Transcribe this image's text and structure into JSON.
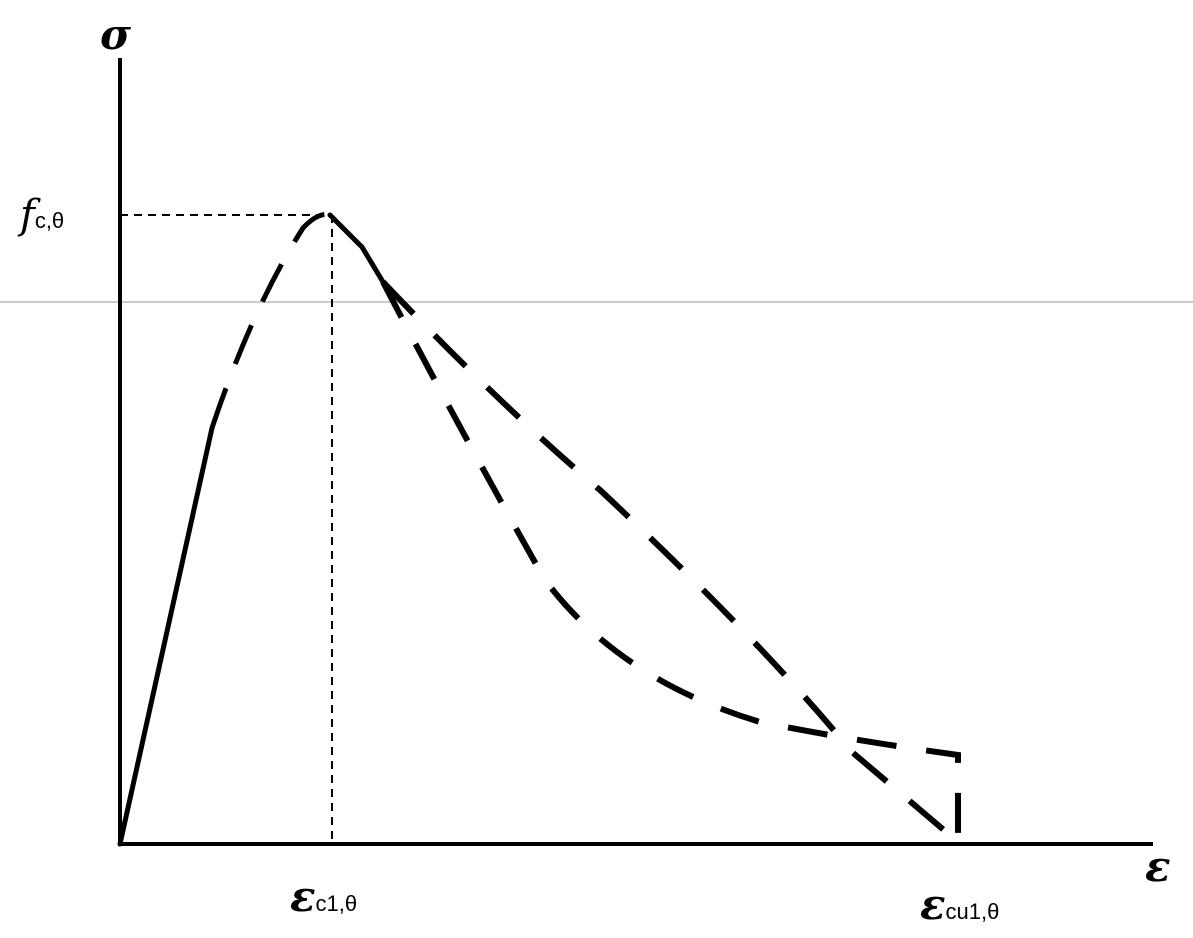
{
  "labels": {
    "sigma": "σ",
    "epsilon": "ε",
    "fc_main": "f",
    "fc_sub": "c,θ",
    "ec1_main": "ε",
    "ec1_sub": "c1,θ",
    "ecu_main": "ε",
    "ecu_sub": "cu1,θ"
  },
  "colors": {
    "ink": "#000000",
    "reference_line": "#9a9a9a"
  }
}
